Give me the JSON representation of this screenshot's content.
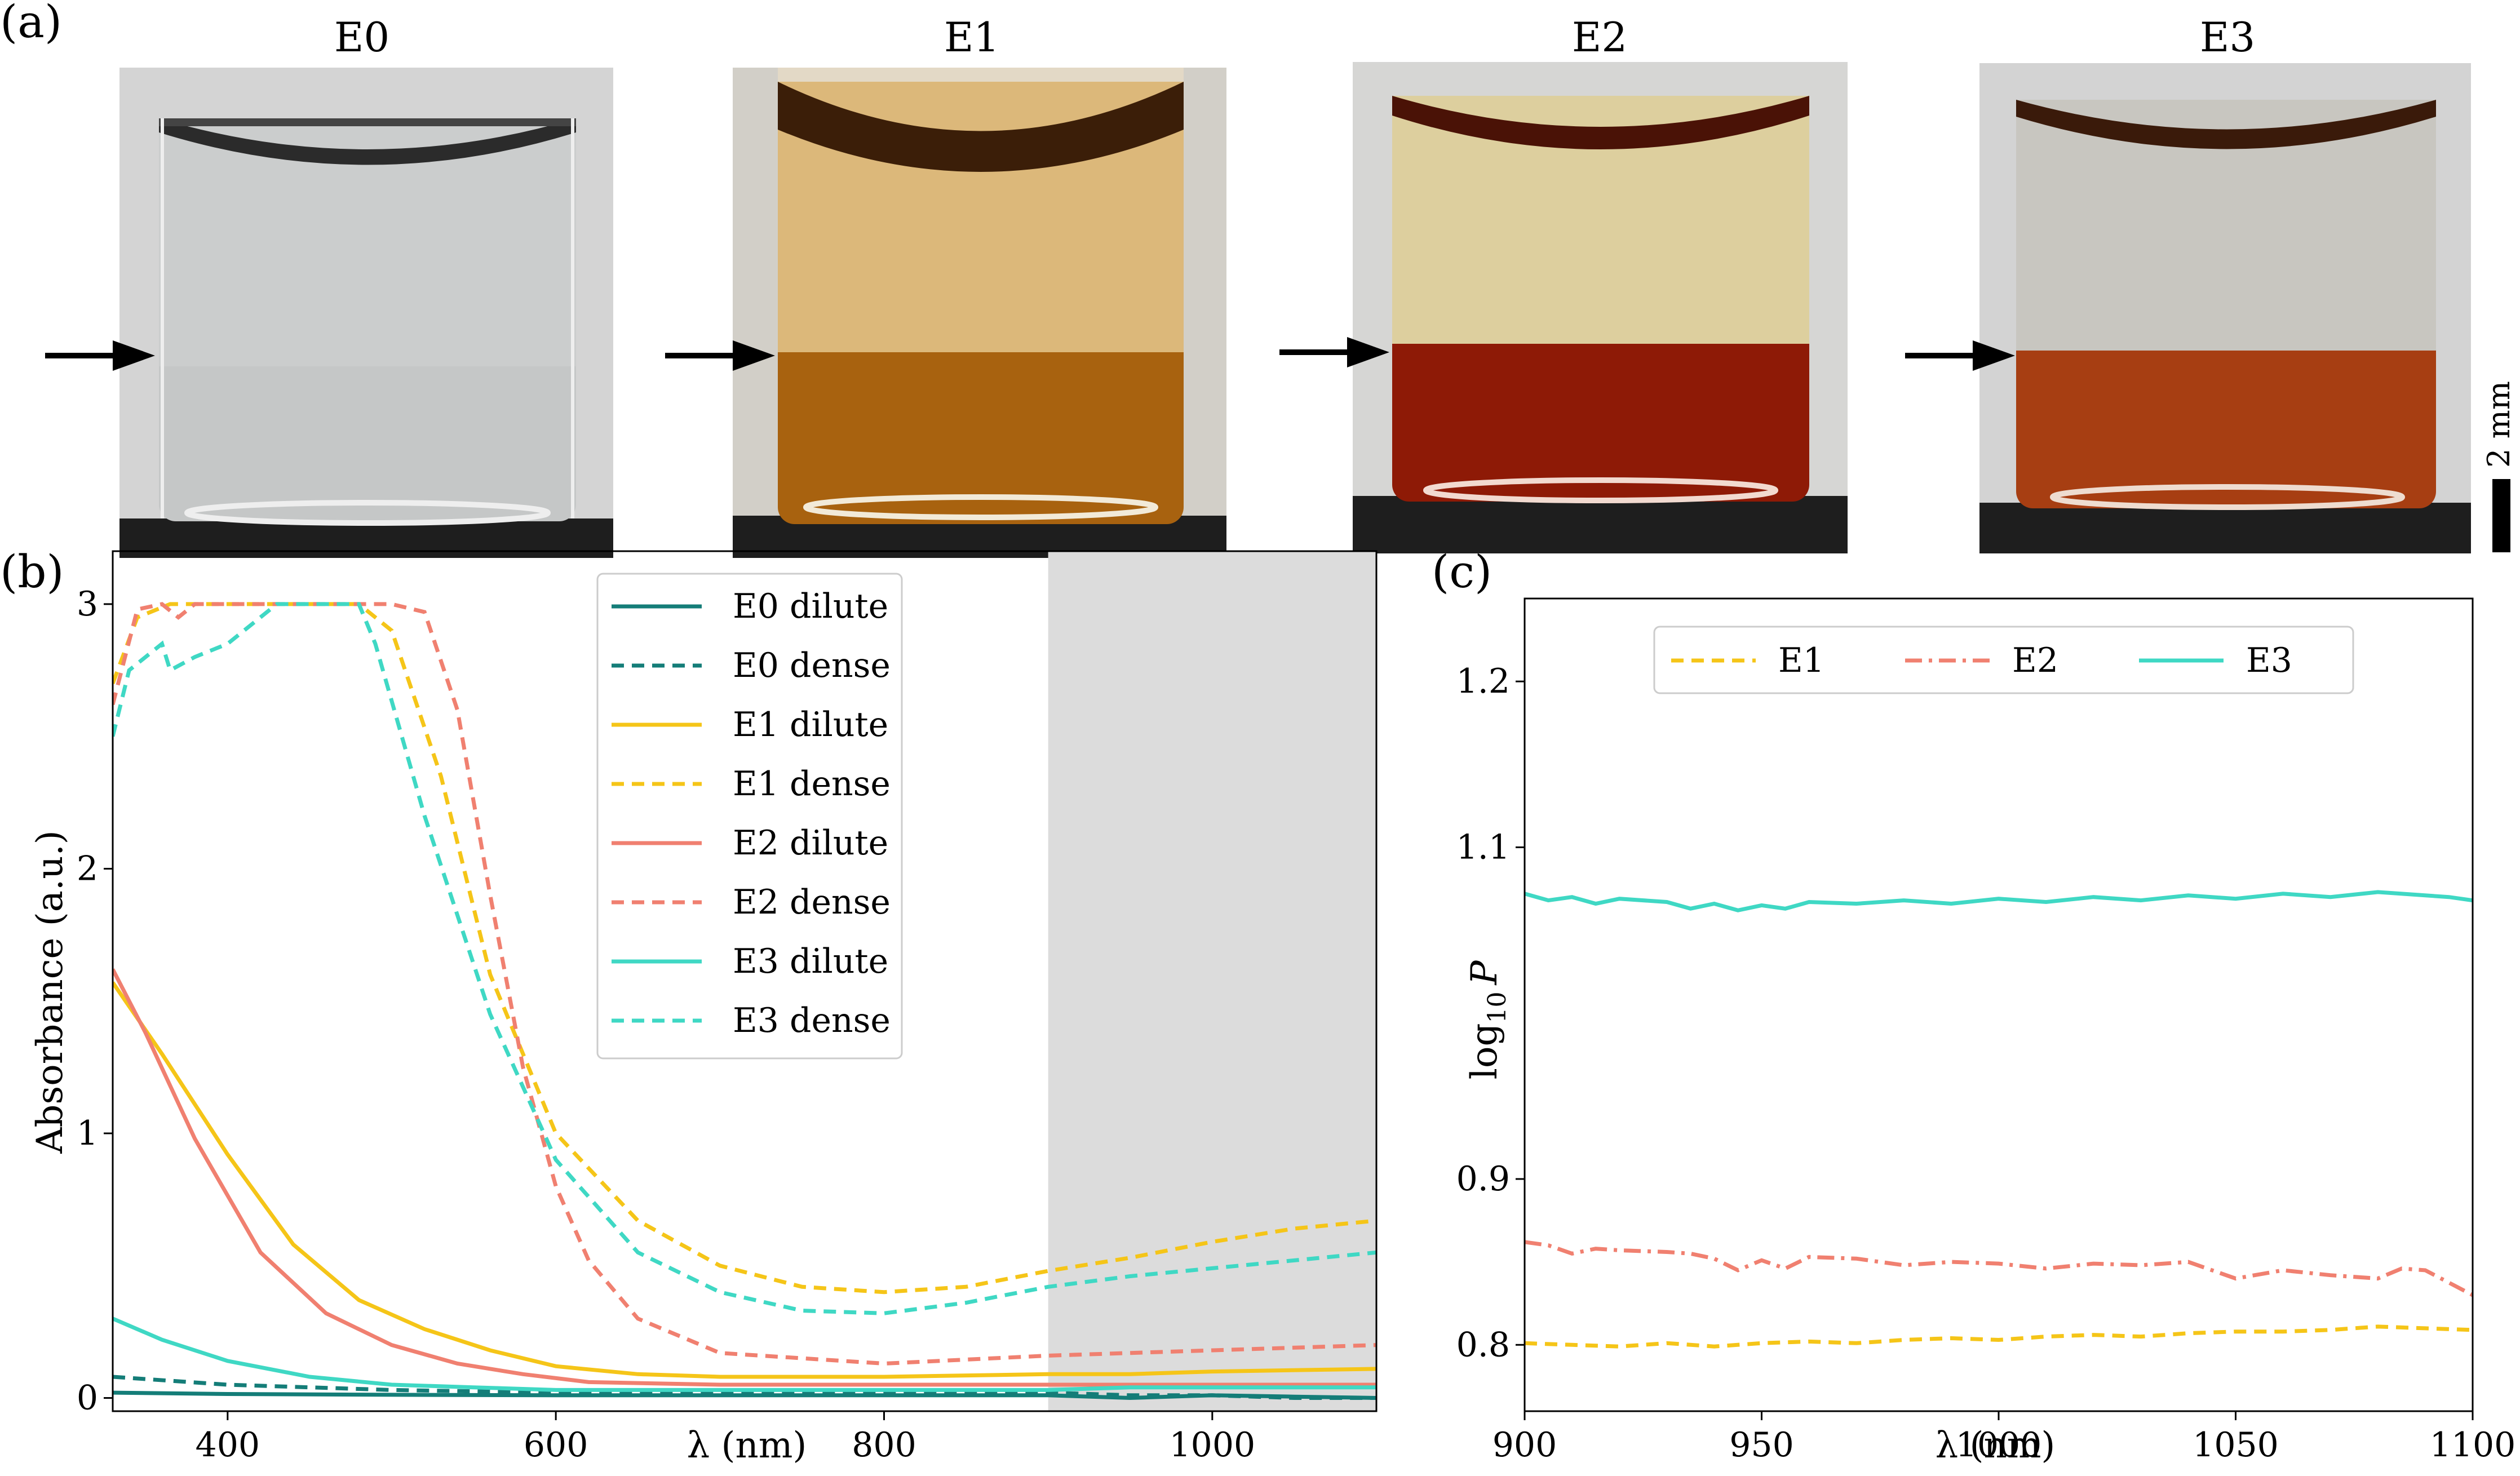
{
  "panel_labels": {
    "a": "(a)",
    "b": "(b)",
    "c": "(c)"
  },
  "photos": {
    "scale_bar_label": "2 mm",
    "vials": [
      {
        "name": "E0",
        "top_color": "#cbcdcd",
        "bottom_color": "#c5c7c7"
      },
      {
        "name": "E1",
        "top_color": "#dcb87a",
        "bottom_color": "#a8620f"
      },
      {
        "name": "E2",
        "top_color": "#ddcf9e",
        "bottom_color": "#8e1a06"
      },
      {
        "name": "E3",
        "top_color": "#c8c6c0",
        "bottom_color": "#a73e12"
      }
    ]
  },
  "chart_data": [
    {
      "type": "line",
      "panel": "(b)",
      "xlabel": "λ (nm)",
      "ylabel": "Absorbance (a.u.)",
      "xlim": [
        330,
        1100
      ],
      "ylim": [
        -0.05,
        3.2
      ],
      "xticks": [
        400,
        600,
        800,
        1000
      ],
      "yticks": [
        0,
        1,
        2,
        3
      ],
      "shaded_region": [
        900,
        1100
      ],
      "legend_position": "upper-center",
      "series": [
        {
          "name": "E0 dilute",
          "color": "#147d78",
          "dash": "solid",
          "x": [
            330,
            400,
            500,
            600,
            700,
            800,
            900,
            950,
            1000,
            1050,
            1100
          ],
          "y": [
            0.02,
            0.015,
            0.012,
            0.01,
            0.01,
            0.01,
            0.01,
            0.0,
            0.01,
            0.005,
            0.0
          ]
        },
        {
          "name": "E0 dense",
          "color": "#147d78",
          "dash": "dashed",
          "x": [
            330,
            400,
            500,
            600,
            700,
            800,
            900,
            950,
            1000,
            1050,
            1100
          ],
          "y": [
            0.08,
            0.05,
            0.03,
            0.02,
            0.02,
            0.02,
            0.02,
            0.01,
            0.01,
            0.0,
            0.0
          ]
        },
        {
          "name": "E1 dilute",
          "color": "#f5c518",
          "dash": "solid",
          "x": [
            330,
            360,
            400,
            440,
            480,
            520,
            560,
            600,
            650,
            700,
            800,
            900,
            950,
            1000,
            1100
          ],
          "y": [
            1.57,
            1.3,
            0.92,
            0.58,
            0.37,
            0.26,
            0.18,
            0.12,
            0.09,
            0.08,
            0.08,
            0.09,
            0.09,
            0.1,
            0.11
          ]
        },
        {
          "name": "E1 dense",
          "color": "#f5c518",
          "dash": "dashed",
          "x": [
            330,
            345,
            365,
            400,
            480,
            500,
            530,
            560,
            600,
            650,
            700,
            750,
            800,
            850,
            900,
            950,
            1000,
            1050,
            1100
          ],
          "y": [
            2.7,
            2.95,
            3.0,
            3.0,
            3.0,
            2.9,
            2.35,
            1.6,
            1.0,
            0.67,
            0.5,
            0.42,
            0.4,
            0.42,
            0.48,
            0.53,
            0.59,
            0.64,
            0.67
          ]
        },
        {
          "name": "E2 dilute",
          "color": "#f08070",
          "dash": "solid",
          "x": [
            330,
            350,
            380,
            420,
            460,
            500,
            540,
            580,
            620,
            700,
            800,
            900,
            950,
            1000,
            1100
          ],
          "y": [
            1.62,
            1.38,
            0.98,
            0.55,
            0.32,
            0.2,
            0.13,
            0.09,
            0.06,
            0.05,
            0.05,
            0.05,
            0.05,
            0.05,
            0.05
          ]
        },
        {
          "name": "E2 dense",
          "color": "#f08070",
          "dash": "dashed",
          "x": [
            330,
            345,
            360,
            370,
            380,
            400,
            500,
            520,
            540,
            560,
            580,
            600,
            620,
            650,
            700,
            800,
            900,
            950,
            1000,
            1100
          ],
          "y": [
            2.62,
            2.98,
            3.0,
            2.95,
            3.0,
            3.0,
            3.0,
            2.97,
            2.6,
            1.9,
            1.25,
            0.8,
            0.52,
            0.3,
            0.17,
            0.13,
            0.16,
            0.17,
            0.18,
            0.2
          ]
        },
        {
          "name": "E3 dilute",
          "color": "#3fd8c4",
          "dash": "solid",
          "x": [
            330,
            360,
            400,
            450,
            500,
            550,
            600,
            700,
            800,
            900,
            950,
            1000,
            1100
          ],
          "y": [
            0.3,
            0.22,
            0.14,
            0.08,
            0.05,
            0.04,
            0.03,
            0.03,
            0.03,
            0.03,
            0.04,
            0.04,
            0.04
          ]
        },
        {
          "name": "E3 dense",
          "color": "#3fd8c4",
          "dash": "dashed",
          "x": [
            330,
            340,
            360,
            365,
            380,
            400,
            430,
            480,
            490,
            520,
            560,
            600,
            650,
            700,
            750,
            800,
            850,
            900,
            950,
            1000,
            1050,
            1100
          ],
          "y": [
            2.5,
            2.75,
            2.85,
            2.75,
            2.8,
            2.85,
            3.0,
            3.0,
            2.85,
            2.2,
            1.45,
            0.9,
            0.55,
            0.4,
            0.33,
            0.32,
            0.36,
            0.42,
            0.46,
            0.49,
            0.52,
            0.55
          ]
        }
      ]
    },
    {
      "type": "line",
      "panel": "(c)",
      "xlabel": "λ (nm)",
      "ylabel": "log10 P",
      "ylabel_base": "log",
      "ylabel_sub": "10",
      "ylabel_var": "P",
      "xlim": [
        900,
        1100
      ],
      "ylim": [
        0.76,
        1.25
      ],
      "xticks": [
        900,
        950,
        1000,
        1050,
        1100
      ],
      "yticks": [
        0.8,
        0.9,
        1.1,
        1.2
      ],
      "legend_position": "upper-center",
      "series": [
        {
          "name": "E1",
          "color": "#f5c518",
          "dash": "dashed",
          "x": [
            900,
            910,
            920,
            930,
            940,
            950,
            960,
            970,
            980,
            990,
            1000,
            1010,
            1020,
            1030,
            1040,
            1050,
            1060,
            1070,
            1080,
            1090,
            1100
          ],
          "y": [
            0.801,
            0.8,
            0.799,
            0.801,
            0.799,
            0.801,
            0.802,
            0.801,
            0.803,
            0.804,
            0.803,
            0.805,
            0.806,
            0.805,
            0.807,
            0.808,
            0.808,
            0.809,
            0.811,
            0.81,
            0.809
          ]
        },
        {
          "name": "E2",
          "color": "#f08070",
          "dash": "dashdot",
          "x": [
            900,
            905,
            910,
            915,
            920,
            930,
            935,
            940,
            945,
            950,
            955,
            960,
            970,
            980,
            990,
            1000,
            1010,
            1020,
            1030,
            1040,
            1050,
            1060,
            1070,
            1080,
            1085,
            1090,
            1100
          ],
          "y": [
            0.862,
            0.86,
            0.855,
            0.858,
            0.857,
            0.856,
            0.855,
            0.852,
            0.845,
            0.851,
            0.846,
            0.853,
            0.852,
            0.848,
            0.85,
            0.849,
            0.846,
            0.849,
            0.848,
            0.85,
            0.84,
            0.845,
            0.842,
            0.84,
            0.846,
            0.845,
            0.83
          ]
        },
        {
          "name": "E3",
          "color": "#3fd8c4",
          "dash": "solid",
          "x": [
            900,
            905,
            910,
            915,
            920,
            930,
            935,
            940,
            945,
            950,
            955,
            960,
            970,
            980,
            990,
            1000,
            1010,
            1020,
            1030,
            1040,
            1050,
            1060,
            1070,
            1080,
            1090,
            1095,
            1100
          ],
          "y": [
            1.072,
            1.068,
            1.07,
            1.066,
            1.069,
            1.067,
            1.063,
            1.066,
            1.062,
            1.065,
            1.063,
            1.067,
            1.066,
            1.068,
            1.066,
            1.069,
            1.067,
            1.07,
            1.068,
            1.071,
            1.069,
            1.072,
            1.07,
            1.073,
            1.071,
            1.07,
            1.068
          ]
        }
      ]
    }
  ]
}
